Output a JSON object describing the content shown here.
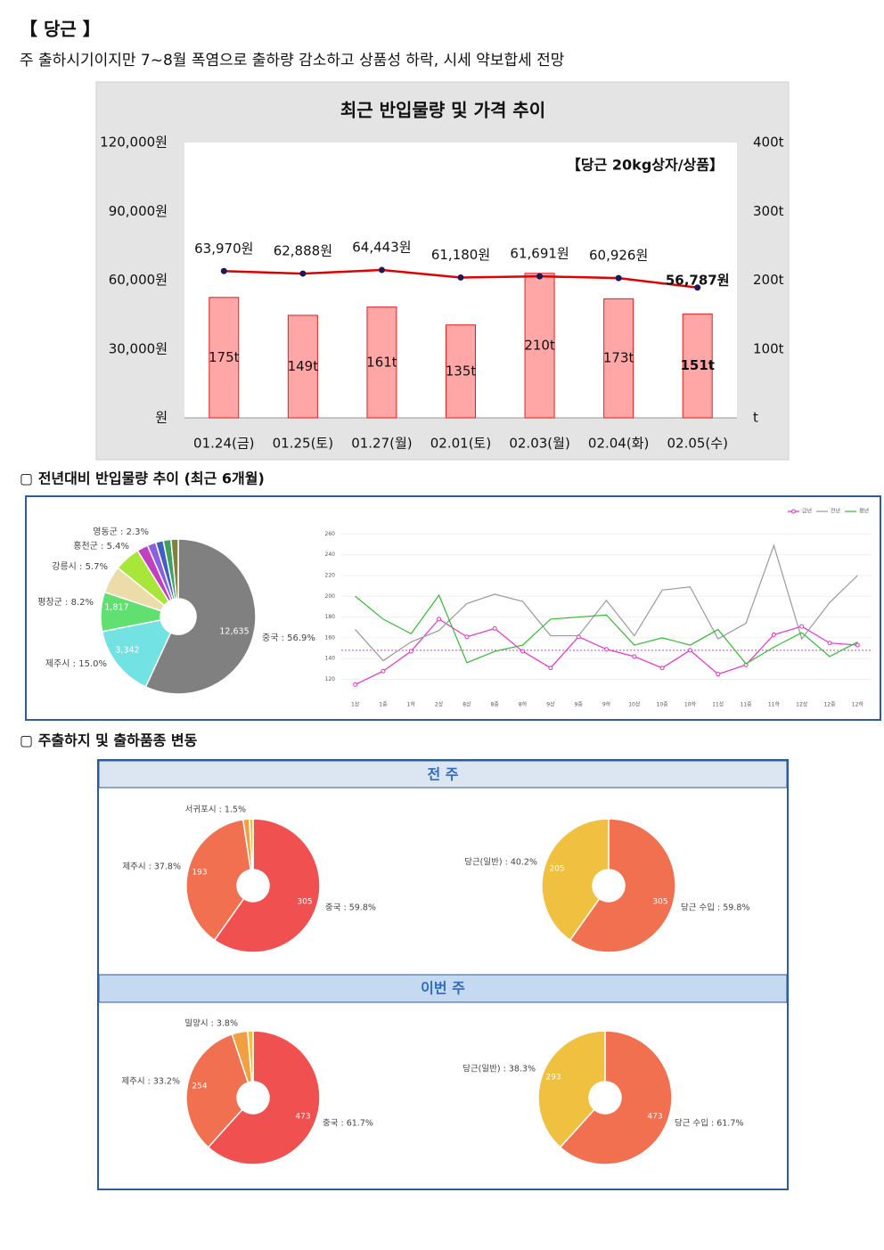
{
  "header": {
    "title": "【 당근 】",
    "subtitle": "주 출하시기이지만 7~8월 폭염으로 출하량 감소하고 상품성 하락, 시세 약보합세 전망"
  },
  "sections": [
    "▢ 전년대비 반입물량 추이 (최근 6개월)",
    "▢ 주출하지 및 출하품종 변동"
  ],
  "panels": [
    "전 주",
    "이번 주"
  ],
  "chart_data": [
    {
      "type": "combo",
      "title": "최근 반입물량 및 가격 추이",
      "annotation": "【당근 20kg상자/상품】",
      "categories": [
        "01.24(금)",
        "01.25(토)",
        "01.27(월)",
        "02.01(토)",
        "02.03(월)",
        "02.04(화)",
        "02.05(수)"
      ],
      "series": [
        {
          "type": "bar",
          "axis": "y2",
          "color": "#ffa6a6",
          "border": "#e02020",
          "values": [
            175,
            149,
            161,
            135,
            210,
            173,
            151
          ],
          "value_labels": [
            "175t",
            "149t",
            "161t",
            "135t",
            "210t",
            "173t",
            "151t"
          ]
        },
        {
          "type": "line",
          "axis": "y",
          "color": "#e00000",
          "marker_color": "#1a1a5a",
          "values": [
            63970,
            62888,
            64443,
            61180,
            61691,
            60926,
            56787
          ],
          "value_labels": [
            "63,970원",
            "62,888원",
            "64,443원",
            "61,180원",
            "61,691원",
            "60,926원",
            "56,787원"
          ]
        }
      ],
      "highlight_last": true,
      "ylim": [
        0,
        120000
      ],
      "yticks": [
        {
          "value": 0,
          "label": "원"
        },
        {
          "value": 30000,
          "label": "30,000원"
        },
        {
          "value": 60000,
          "label": "60,000원"
        },
        {
          "value": 90000,
          "label": "90,000원"
        },
        {
          "value": 120000,
          "label": "120,000원"
        }
      ],
      "y2lim": [
        0,
        400
      ],
      "y2ticks": [
        {
          "value": 0,
          "label": "t"
        },
        {
          "value": 100,
          "label": "100t"
        },
        {
          "value": 200,
          "label": "200t"
        },
        {
          "value": 300,
          "label": "300t"
        },
        {
          "value": 400,
          "label": "400t"
        }
      ],
      "grid": false
    },
    {
      "type": "donut",
      "labels": [
        "중국 : 56.9%",
        "제주시 : 15.0%",
        "평창군 : 8.2%",
        "강릉시 : 5.7%",
        "홍천군 : 5.4%",
        "영동군 : 2.3%",
        null,
        null,
        null,
        null
      ],
      "values": [
        56.9,
        15.0,
        8.2,
        5.7,
        5.4,
        2.3,
        1.8,
        1.6,
        1.6,
        1.5
      ],
      "counts": [
        12635,
        3342,
        1817,
        null,
        null,
        null,
        null,
        null,
        null,
        null
      ],
      "count_labels": [
        "12,635",
        "3,342",
        "1,817",
        null,
        null,
        null,
        null,
        null,
        null,
        null
      ],
      "colors": [
        "#808080",
        "#72e2e2",
        "#60e070",
        "#ecdcaa",
        "#a8e63a",
        "#c040c0",
        "#8a60e0",
        "#4060c0",
        "#40a060",
        "#808040"
      ]
    },
    {
      "type": "line",
      "categories": [
        "1상",
        "1중",
        "1하",
        "2상",
        "8상",
        "8중",
        "8하",
        "9상",
        "9중",
        "9하",
        "10상",
        "10중",
        "10하",
        "11상",
        "11중",
        "11하",
        "12상",
        "12중",
        "12하"
      ],
      "series": [
        {
          "name": "금년",
          "color": "#e633c8",
          "markers": true,
          "values": [
            115,
            128,
            147,
            178,
            161,
            169,
            147,
            131,
            161,
            149,
            142,
            131,
            148,
            125,
            134,
            163,
            171,
            155,
            153
          ]
        },
        {
          "name": "전년",
          "color": "#9a9a9a",
          "markers": false,
          "values": [
            168,
            138,
            156,
            167,
            193,
            202,
            195,
            162,
            162,
            196,
            162,
            206,
            209,
            159,
            174,
            249,
            159,
            194,
            220
          ]
        },
        {
          "name": "평년",
          "color": "#33bb33",
          "markers": false,
          "values": [
            200,
            178,
            164,
            201,
            136,
            147,
            153,
            178,
            180,
            182,
            153,
            160,
            153,
            168,
            135,
            151,
            165,
            142,
            156
          ]
        }
      ],
      "average_line": {
        "value": 148,
        "color": "#e633c8"
      },
      "ylim": [
        105,
        268
      ],
      "yticks": [
        120,
        140,
        160,
        180,
        200,
        220,
        240,
        260
      ],
      "grid": true,
      "legend": "top-right"
    },
    {
      "type": "donut",
      "labels": [
        "중국 : 59.8%",
        "제주시 : 37.8%",
        "서귀포시 : 1.5%",
        null
      ],
      "values": [
        59.8,
        37.8,
        1.5,
        0.9
      ],
      "counts": [
        305,
        193,
        null,
        null
      ],
      "count_labels": [
        "305",
        "193",
        null,
        null
      ],
      "colors": [
        "#f05050",
        "#f07050",
        "#f0a040",
        "#f0c040"
      ]
    },
    {
      "type": "donut",
      "labels": [
        "당근 수입 : 59.8%",
        "당근(일반) : 40.2%"
      ],
      "values": [
        59.8,
        40.2
      ],
      "counts": [
        305,
        205
      ],
      "count_labels": [
        "305",
        "205"
      ],
      "colors": [
        "#f07050",
        "#f0c040"
      ]
    },
    {
      "type": "donut",
      "labels": [
        "중국 : 61.7%",
        "제주시 : 33.2%",
        "밀양시 : 3.8%",
        null
      ],
      "values": [
        61.7,
        33.2,
        3.8,
        1.3
      ],
      "counts": [
        473,
        254,
        null,
        null
      ],
      "count_labels": [
        "473",
        "254",
        null,
        null
      ],
      "colors": [
        "#f05050",
        "#f07050",
        "#f0a040",
        "#f0c040"
      ]
    },
    {
      "type": "donut",
      "labels": [
        "당근 수입 : 61.7%",
        "당근(일반) : 38.3%"
      ],
      "values": [
        61.7,
        38.3
      ],
      "counts": [
        473,
        293
      ],
      "count_labels": [
        "473",
        "293"
      ],
      "colors": [
        "#f07050",
        "#f0c040"
      ]
    }
  ]
}
